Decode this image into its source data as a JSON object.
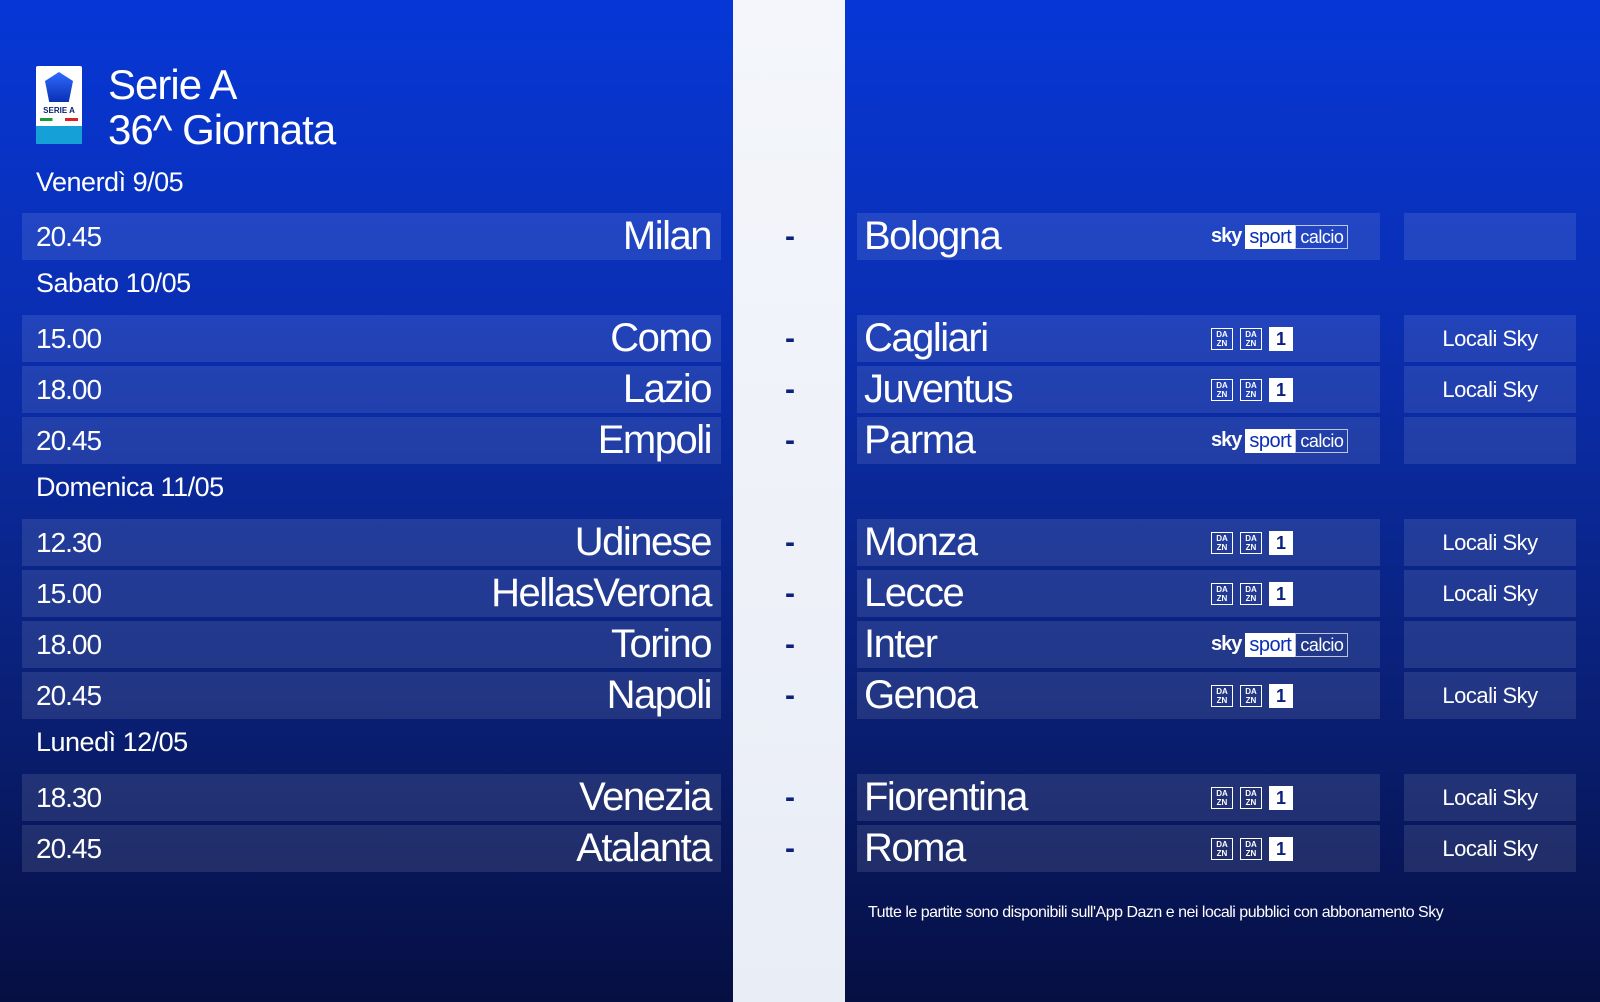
{
  "header": {
    "logo_text": "SERIE A",
    "title_line1": "Serie A",
    "title_line2": "36^ Giornata"
  },
  "days": [
    {
      "label": "Venerdì 9/05"
    },
    {
      "label": "Sabato 10/05"
    },
    {
      "label": "Domenica 11/05"
    },
    {
      "label": "Lunedì 12/05"
    }
  ],
  "broadcaster": {
    "sky_word": "sky",
    "sport_word": "sport",
    "calcio_word": "calcio",
    "dazn_top": "DA",
    "dazn_bottom": "ZN",
    "dazn_channel": "1"
  },
  "matches": [
    {
      "time": "20.45",
      "home": "Milan",
      "sep": "-",
      "away": "Bologna",
      "tv": "sky",
      "extra": ""
    },
    {
      "time": "15.00",
      "home": "Como",
      "sep": "-",
      "away": "Cagliari",
      "tv": "dazn",
      "extra": "Locali Sky"
    },
    {
      "time": "18.00",
      "home": "Lazio",
      "sep": "-",
      "away": "Juventus",
      "tv": "dazn",
      "extra": "Locali Sky"
    },
    {
      "time": "20.45",
      "home": "Empoli",
      "sep": "-",
      "away": "Parma",
      "tv": "sky",
      "extra": ""
    },
    {
      "time": "12.30",
      "home": "Udinese",
      "sep": "-",
      "away": "Monza",
      "tv": "dazn",
      "extra": "Locali Sky"
    },
    {
      "time": "15.00",
      "home": "HellasVerona",
      "sep": "-",
      "away": "Lecce",
      "tv": "dazn",
      "extra": "Locali Sky"
    },
    {
      "time": "18.00",
      "home": "Torino",
      "sep": "-",
      "away": "Inter",
      "tv": "sky",
      "extra": ""
    },
    {
      "time": "20.45",
      "home": "Napoli",
      "sep": "-",
      "away": "Genoa",
      "tv": "dazn",
      "extra": "Locali Sky"
    },
    {
      "time": "18.30",
      "home": "Venezia",
      "sep": "-",
      "away": "Fiorentina",
      "tv": "dazn",
      "extra": "Locali Sky"
    },
    {
      "time": "20.45",
      "home": "Atalanta",
      "sep": "-",
      "away": "Roma",
      "tv": "dazn",
      "extra": "Locali Sky"
    }
  ],
  "footnote": "Tutte le partite sono disponibili sull'App Dazn e nei locali pubblici con abbonamento Sky"
}
